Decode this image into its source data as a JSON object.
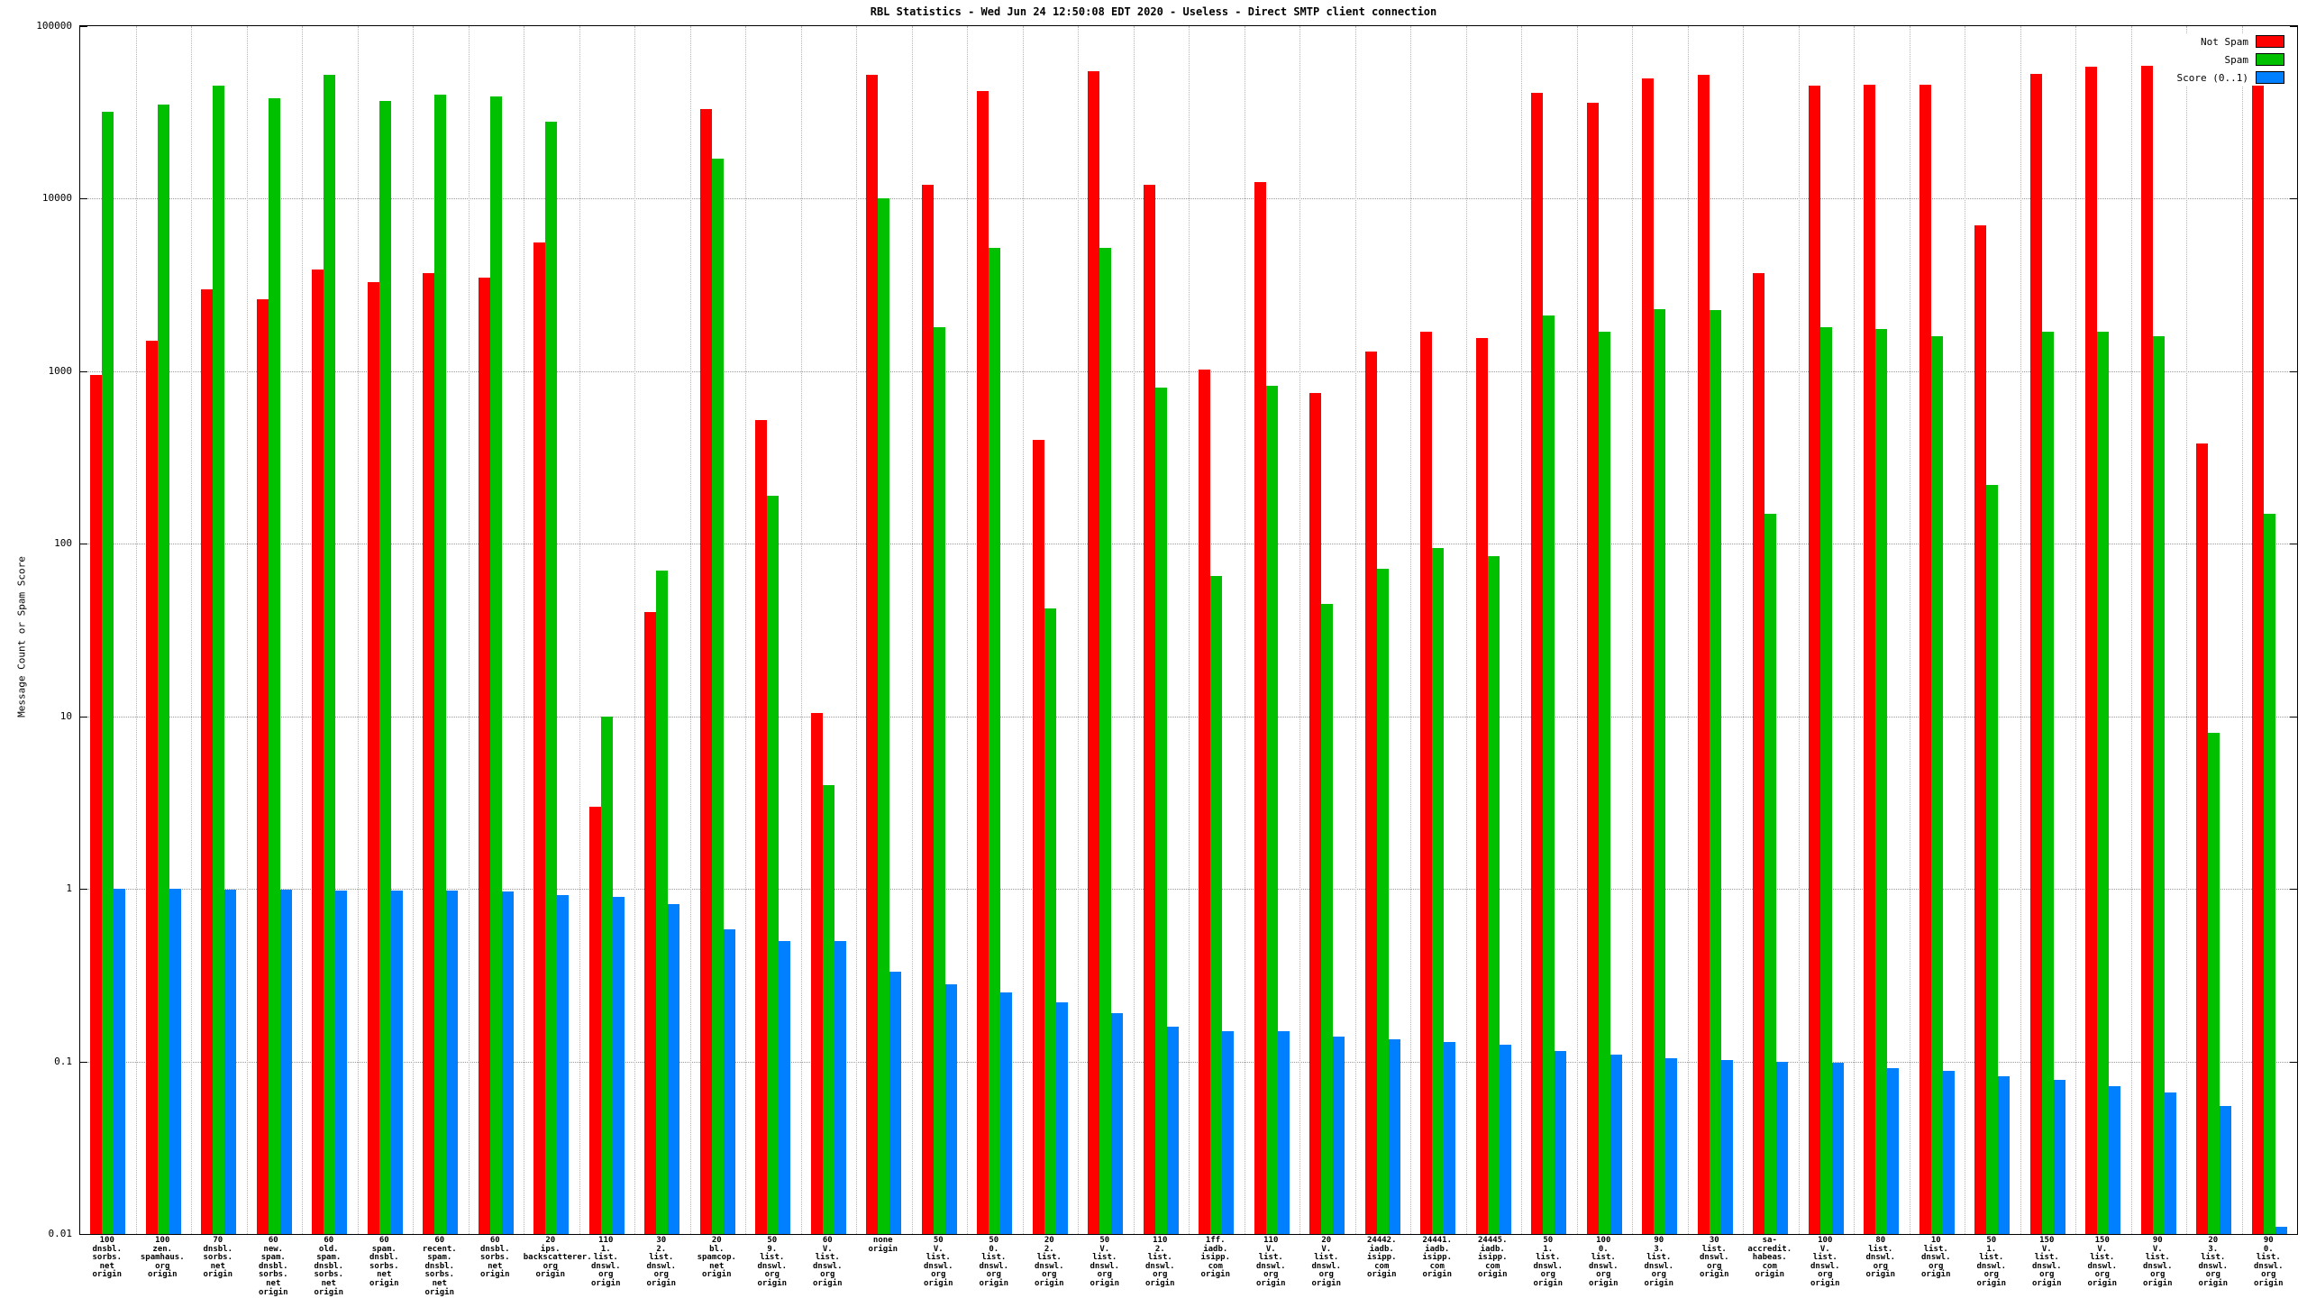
{
  "chart_data": {
    "type": "bar",
    "title": "RBL Statistics - Wed Jun 24 12:50:08 EDT 2020 - Useless - Direct SMTP client connection",
    "ylabel": "Message Count or Spam Score",
    "y_scale": "log",
    "ylim": [
      0.01,
      100000
    ],
    "y_ticks": [
      100000,
      10000,
      1000,
      100,
      10,
      1,
      0.1,
      0.01
    ],
    "y_tick_labels": [
      "100000",
      "10000",
      "1000",
      "100",
      "10",
      "1",
      "0.1",
      "0.01"
    ],
    "grid": true,
    "legend_position": "top-right",
    "categories": [
      [
        "100",
        "dnsbl.",
        "sorbs.",
        "net",
        "origin"
      ],
      [
        "100",
        "zen.",
        "spamhaus.",
        "org",
        "origin"
      ],
      [
        "70",
        "dnsbl.",
        "sorbs.",
        "net",
        "origin"
      ],
      [
        "60",
        "new.",
        "spam.",
        "dnsbl.",
        "sorbs.",
        "net",
        "origin"
      ],
      [
        "60",
        "old.",
        "spam.",
        "dnsbl.",
        "sorbs.",
        "net",
        "origin"
      ],
      [
        "60",
        "spam.",
        "dnsbl.",
        "sorbs.",
        "net",
        "origin"
      ],
      [
        "60",
        "recent.",
        "spam.",
        "dnsbl.",
        "sorbs.",
        "net",
        "origin"
      ],
      [
        "60",
        "dnsbl.",
        "sorbs.",
        "net",
        "origin"
      ],
      [
        "20",
        "ips.",
        "backscatterer.",
        "org",
        "origin"
      ],
      [
        "110",
        "1.",
        "list.",
        "dnswl.",
        "org",
        "origin"
      ],
      [
        "30",
        "2.",
        "list.",
        "dnswl.",
        "org",
        "origin"
      ],
      [
        "20",
        "bl.",
        "spamcop.",
        "net",
        "origin"
      ],
      [
        "50",
        "9.",
        "list.",
        "dnswl.",
        "org",
        "origin"
      ],
      [
        "60",
        "V.",
        "list.",
        "dnswl.",
        "org",
        "origin"
      ],
      [
        "none",
        "origin"
      ],
      [
        "50",
        "V.",
        "list.",
        "dnswl.",
        "org",
        "origin"
      ],
      [
        "50",
        "0.",
        "list.",
        "dnswl.",
        "org",
        "origin"
      ],
      [
        "20",
        "2.",
        "list.",
        "dnswl.",
        "org",
        "origin"
      ],
      [
        "50",
        "V.",
        "list.",
        "dnswl.",
        "org",
        "origin"
      ],
      [
        "110",
        "2.",
        "list.",
        "dnswl.",
        "org",
        "origin"
      ],
      [
        "1ff.",
        "iadb.",
        "isipp.",
        "com",
        "origin"
      ],
      [
        "110",
        "V.",
        "list.",
        "dnswl.",
        "org",
        "origin"
      ],
      [
        "20",
        "V.",
        "list.",
        "dnswl.",
        "org",
        "origin"
      ],
      [
        "24442.",
        "iadb.",
        "isipp.",
        "com",
        "origin"
      ],
      [
        "24441.",
        "iadb.",
        "isipp.",
        "com",
        "origin"
      ],
      [
        "24445.",
        "iadb.",
        "isipp.",
        "com",
        "origin"
      ],
      [
        "50",
        "1.",
        "list.",
        "dnswl.",
        "org",
        "origin"
      ],
      [
        "100",
        "0.",
        "list.",
        "dnswl.",
        "org",
        "origin"
      ],
      [
        "90",
        "3.",
        "list.",
        "dnswl.",
        "org",
        "origin"
      ],
      [
        "30",
        "list.",
        "dnswl.",
        "org",
        "origin"
      ],
      [
        "sa-accredit.",
        "habeas.",
        "com",
        "origin"
      ],
      [
        "100",
        "V.",
        "list.",
        "dnswl.",
        "org",
        "origin"
      ],
      [
        "80",
        "list.",
        "dnswl.",
        "org",
        "origin"
      ],
      [
        "10",
        "list.",
        "dnswl.",
        "org",
        "origin"
      ],
      [
        "50",
        "1.",
        "list.",
        "dnswl.",
        "org",
        "origin"
      ],
      [
        "150",
        "V.",
        "list.",
        "dnswl.",
        "org",
        "origin"
      ],
      [
        "150",
        "V.",
        "list.",
        "dnswl.",
        "org",
        "origin"
      ],
      [
        "90",
        "V.",
        "list.",
        "dnswl.",
        "org",
        "origin"
      ],
      [
        "20",
        "3.",
        "list.",
        "dnswl.",
        "org",
        "origin"
      ],
      [
        "90",
        "0.",
        "list.",
        "dnswl.",
        "org",
        "origin"
      ]
    ],
    "series": [
      {
        "name": "Not Spam",
        "color": "#ff0000",
        "values": [
          950,
          1500,
          3000,
          2600,
          3900,
          3300,
          3700,
          3500,
          5600,
          3,
          40,
          33000,
          520,
          10.5,
          52000,
          12000,
          42000,
          400,
          55000,
          12000,
          1020,
          12500,
          750,
          1300,
          1700,
          1550,
          41000,
          36000,
          50000,
          52000,
          3700,
          45000,
          46000,
          46000,
          7000,
          53000,
          58000,
          59000,
          380,
          50000
        ]
      },
      {
        "name": "Spam",
        "color": "#00c000",
        "values": [
          32000,
          35000,
          45000,
          38000,
          52000,
          37000,
          40000,
          39000,
          28000,
          10,
          70,
          17000,
          190,
          4,
          10000,
          1800,
          5200,
          42,
          5200,
          800,
          65,
          820,
          45,
          72,
          95,
          85,
          2100,
          1700,
          2300,
          2250,
          150,
          1800,
          1750,
          1600,
          220,
          1700,
          1700,
          1600,
          8,
          150
        ]
      },
      {
        "name": "Score (0..1)",
        "color": "#0080ff",
        "values": [
          1.0,
          1.0,
          0.99,
          0.99,
          0.98,
          0.98,
          0.98,
          0.97,
          0.92,
          0.9,
          0.82,
          0.58,
          0.5,
          0.5,
          0.33,
          0.28,
          0.25,
          0.22,
          0.19,
          0.16,
          0.15,
          0.15,
          0.14,
          0.135,
          0.13,
          0.125,
          0.115,
          0.11,
          0.105,
          0.102,
          0.1,
          0.098,
          0.092,
          0.088,
          0.082,
          0.078,
          0.072,
          0.066,
          0.055,
          0.011
        ]
      }
    ]
  }
}
